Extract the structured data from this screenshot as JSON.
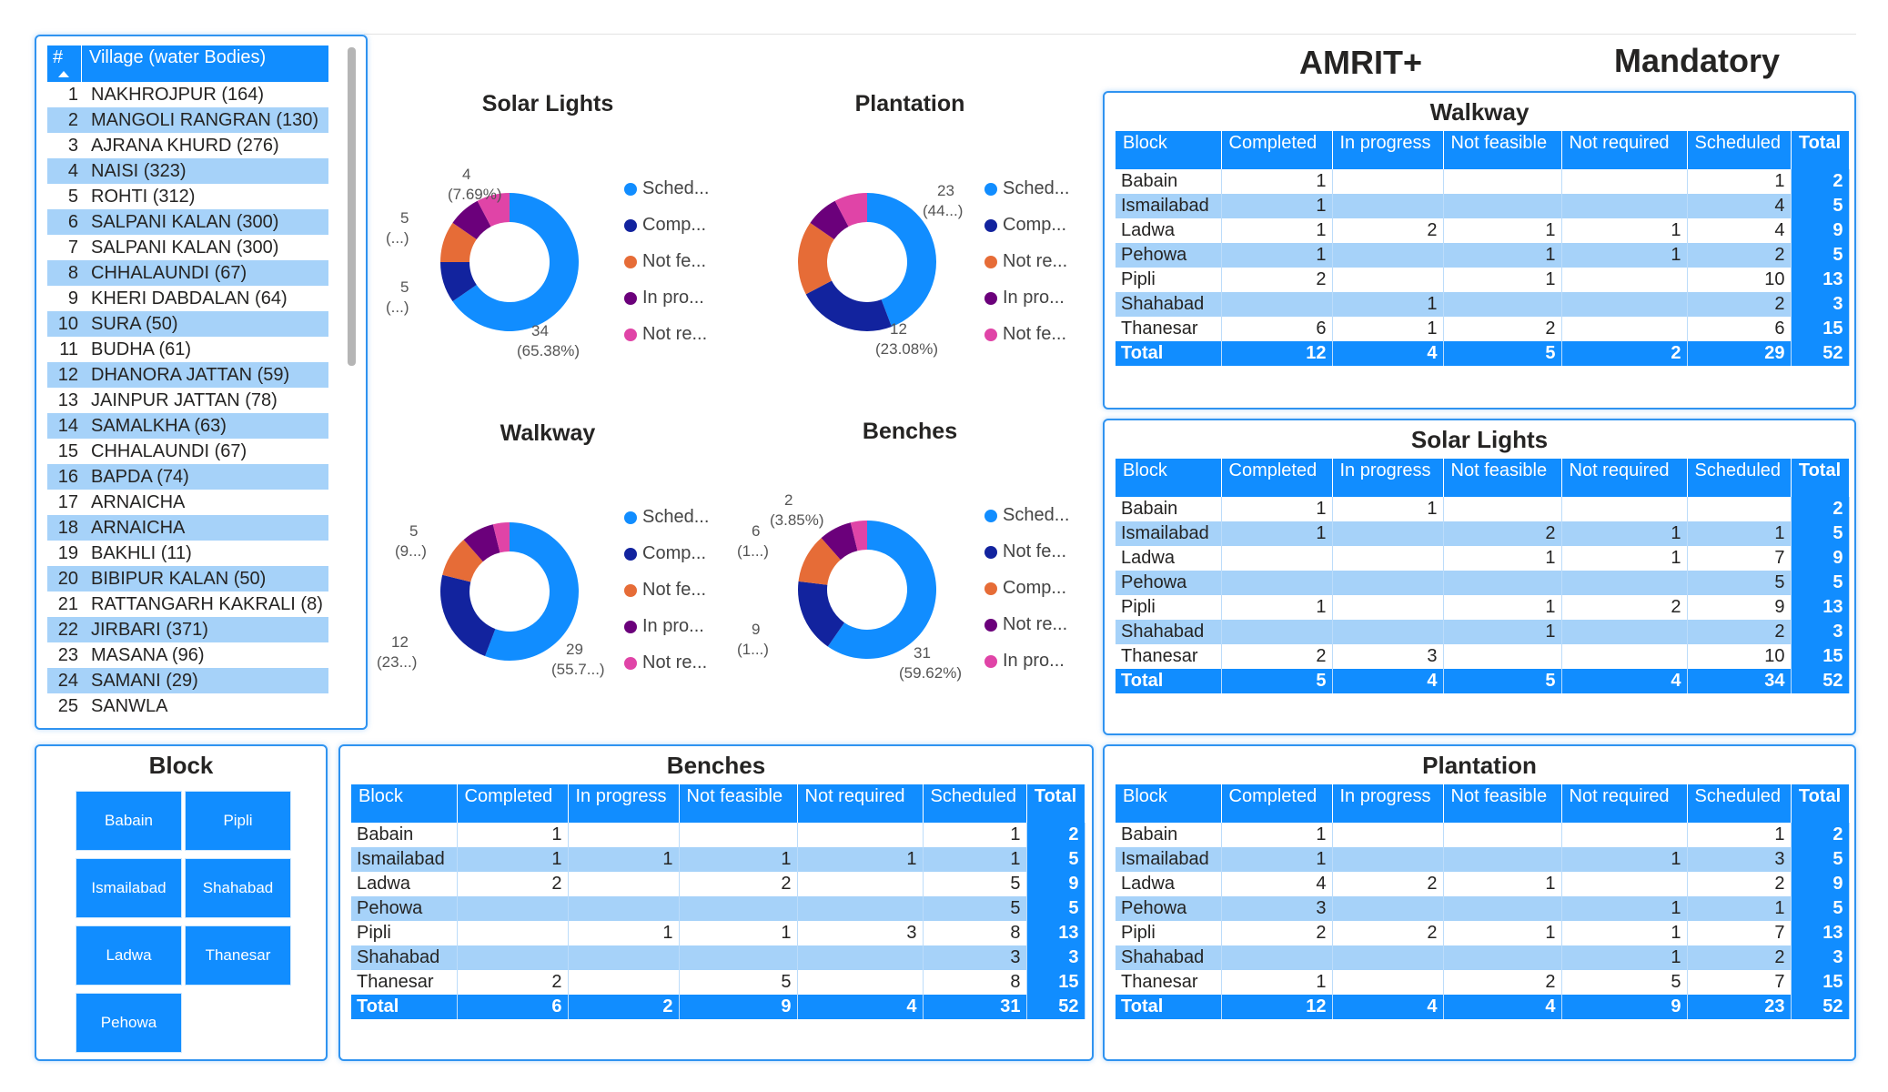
{
  "header": {
    "amrit": "AMRIT+",
    "mandatory": "Mandatory"
  },
  "colors": {
    "scheduled": "#118dff",
    "completed": "#12239e",
    "not_feasible": "#e66c37",
    "in_progress": "#6b007b",
    "not_required": "#e044a7"
  },
  "village_list": {
    "col_num": "#",
    "col_village": "Village (water Bodies)",
    "items": [
      {
        "n": "1",
        "v": "NAKHROJPUR (164)"
      },
      {
        "n": "2",
        "v": "MANGOLI RANGRAN (130)"
      },
      {
        "n": "3",
        "v": "AJRANA KHURD (276)"
      },
      {
        "n": "4",
        "v": "NAISI (323)"
      },
      {
        "n": "5",
        "v": "ROHTI (312)"
      },
      {
        "n": "6",
        "v": "SALPANI KALAN (300)"
      },
      {
        "n": "7",
        "v": "SALPANI KALAN (300)"
      },
      {
        "n": "8",
        "v": "CHHALAUNDI (67)"
      },
      {
        "n": "9",
        "v": "KHERI DABDALAN (64)"
      },
      {
        "n": "10",
        "v": "SURA (50)"
      },
      {
        "n": "11",
        "v": "BUDHA (61)"
      },
      {
        "n": "12",
        "v": "DHANORA JATTAN (59)"
      },
      {
        "n": "13",
        "v": "JAINPUR JATTAN (78)"
      },
      {
        "n": "14",
        "v": "SAMALKHA (63)"
      },
      {
        "n": "15",
        "v": "CHHALAUNDI (67)"
      },
      {
        "n": "16",
        "v": "BAPDA (74)"
      },
      {
        "n": "17",
        "v": "ARNAICHA"
      },
      {
        "n": "18",
        "v": "ARNAICHA"
      },
      {
        "n": "19",
        "v": "BAKHLI (11)"
      },
      {
        "n": "20",
        "v": "BIBIPUR KALAN (50)"
      },
      {
        "n": "21",
        "v": "RATTANGARH KAKRALI (8)"
      },
      {
        "n": "22",
        "v": "JIRBARI (371)"
      },
      {
        "n": "23",
        "v": "MASANA (96)"
      },
      {
        "n": "24",
        "v": "SAMANI (29)"
      },
      {
        "n": "25",
        "v": "SANWLA"
      }
    ]
  },
  "donuts": [
    {
      "title": "Solar Lights",
      "legend": [
        "Sched...",
        "Comp...",
        "Not fe...",
        "In pro...",
        "Not re..."
      ],
      "legend_colors": [
        "#118dff",
        "#12239e",
        "#e66c37",
        "#6b007b",
        "#e044a7"
      ],
      "slices": [
        {
          "label": "Scheduled",
          "value": 34,
          "color": "#118dff"
        },
        {
          "label": "Completed",
          "value": 5,
          "color": "#12239e"
        },
        {
          "label": "Not feasible",
          "value": 5,
          "color": "#e66c37"
        },
        {
          "label": "In progress",
          "value": 4,
          "color": "#6b007b"
        },
        {
          "label": "Not required",
          "value": 4,
          "color": "#e044a7"
        }
      ],
      "labels": [
        {
          "t1": "4",
          "t2": "(7.69%)"
        },
        {
          "t1": "5",
          "t2": "(...)"
        },
        {
          "t1": "5",
          "t2": "(...)"
        },
        {
          "t1": "34",
          "t2": "(65.38%)"
        }
      ]
    },
    {
      "title": "Plantation",
      "legend": [
        "Sched...",
        "Comp...",
        "Not re...",
        "In pro...",
        "Not fe..."
      ],
      "legend_colors": [
        "#118dff",
        "#12239e",
        "#e66c37",
        "#6b007b",
        "#e044a7"
      ],
      "slices": [
        {
          "label": "Scheduled",
          "value": 23,
          "color": "#118dff"
        },
        {
          "label": "Completed",
          "value": 12,
          "color": "#12239e"
        },
        {
          "label": "Not required",
          "value": 9,
          "color": "#e66c37"
        },
        {
          "label": "In progress",
          "value": 4,
          "color": "#6b007b"
        },
        {
          "label": "Not feasible",
          "value": 4,
          "color": "#e044a7"
        }
      ],
      "labels": [
        {
          "t1": "23",
          "t2": "(44...)"
        },
        {
          "t1": "12",
          "t2": "(23.08%)"
        }
      ]
    },
    {
      "title": "Walkway",
      "legend": [
        "Sched...",
        "Comp...",
        "Not fe...",
        "In pro...",
        "Not re..."
      ],
      "legend_colors": [
        "#118dff",
        "#12239e",
        "#e66c37",
        "#6b007b",
        "#e044a7"
      ],
      "slices": [
        {
          "label": "Scheduled",
          "value": 29,
          "color": "#118dff"
        },
        {
          "label": "Completed",
          "value": 12,
          "color": "#12239e"
        },
        {
          "label": "Not feasible",
          "value": 5,
          "color": "#e66c37"
        },
        {
          "label": "In progress",
          "value": 4,
          "color": "#6b007b"
        },
        {
          "label": "Not required",
          "value": 2,
          "color": "#e044a7"
        }
      ],
      "labels": [
        {
          "t1": "5",
          "t2": "(9...)"
        },
        {
          "t1": "12",
          "t2": "(23...)"
        },
        {
          "t1": "29",
          "t2": "(55.7...)"
        }
      ]
    },
    {
      "title": "Benches",
      "legend": [
        "Sched...",
        "Not fe...",
        "Comp...",
        "Not re...",
        "In pro..."
      ],
      "legend_colors": [
        "#118dff",
        "#12239e",
        "#e66c37",
        "#6b007b",
        "#e044a7"
      ],
      "slices": [
        {
          "label": "Scheduled",
          "value": 31,
          "color": "#118dff"
        },
        {
          "label": "Not feasible",
          "value": 9,
          "color": "#12239e"
        },
        {
          "label": "Completed",
          "value": 6,
          "color": "#e66c37"
        },
        {
          "label": "Not required",
          "value": 4,
          "color": "#6b007b"
        },
        {
          "label": "In progress",
          "value": 2,
          "color": "#e044a7"
        }
      ],
      "labels": [
        {
          "t1": "2",
          "t2": "(3.85%)"
        },
        {
          "t1": "6",
          "t2": "(1...)"
        },
        {
          "t1": "9",
          "t2": "(1...)"
        },
        {
          "t1": "31",
          "t2": "(59.62%)"
        }
      ]
    }
  ],
  "table_headers": [
    "Block",
    "Completed",
    "In progress",
    "Not feasible",
    "Not required",
    "Scheduled",
    "Total"
  ],
  "tables": {
    "walkway": {
      "title": "Walkway",
      "rows": [
        [
          "Babain",
          "1",
          "",
          "",
          "",
          "1",
          "2"
        ],
        [
          "Ismailabad",
          "1",
          "",
          "",
          "",
          "4",
          "5"
        ],
        [
          "Ladwa",
          "1",
          "2",
          "1",
          "1",
          "4",
          "9"
        ],
        [
          "Pehowa",
          "1",
          "",
          "1",
          "1",
          "2",
          "5"
        ],
        [
          "Pipli",
          "2",
          "",
          "1",
          "",
          "10",
          "13"
        ],
        [
          "Shahabad",
          "",
          "1",
          "",
          "",
          "2",
          "3"
        ],
        [
          "Thanesar",
          "6",
          "1",
          "2",
          "",
          "6",
          "15"
        ],
        [
          "Total",
          "12",
          "4",
          "5",
          "2",
          "29",
          "52"
        ]
      ]
    },
    "solar": {
      "title": "Solar Lights",
      "rows": [
        [
          "Babain",
          "1",
          "1",
          "",
          "",
          "",
          "2"
        ],
        [
          "Ismailabad",
          "1",
          "",
          "2",
          "1",
          "1",
          "5"
        ],
        [
          "Ladwa",
          "",
          "",
          "1",
          "1",
          "7",
          "9"
        ],
        [
          "Pehowa",
          "",
          "",
          "",
          "",
          "5",
          "5"
        ],
        [
          "Pipli",
          "1",
          "",
          "1",
          "2",
          "9",
          "13"
        ],
        [
          "Shahabad",
          "",
          "",
          "1",
          "",
          "2",
          "3"
        ],
        [
          "Thanesar",
          "2",
          "3",
          "",
          "",
          "10",
          "15"
        ],
        [
          "Total",
          "5",
          "4",
          "5",
          "4",
          "34",
          "52"
        ]
      ]
    },
    "benches": {
      "title": "Benches",
      "rows": [
        [
          "Babain",
          "1",
          "",
          "",
          "",
          "1",
          "2"
        ],
        [
          "Ismailabad",
          "1",
          "1",
          "1",
          "1",
          "1",
          "5"
        ],
        [
          "Ladwa",
          "2",
          "",
          "2",
          "",
          "5",
          "9"
        ],
        [
          "Pehowa",
          "",
          "",
          "",
          "",
          "5",
          "5"
        ],
        [
          "Pipli",
          "",
          "1",
          "1",
          "3",
          "8",
          "13"
        ],
        [
          "Shahabad",
          "",
          "",
          "",
          "",
          "3",
          "3"
        ],
        [
          "Thanesar",
          "2",
          "",
          "5",
          "",
          "8",
          "15"
        ],
        [
          "Total",
          "6",
          "2",
          "9",
          "4",
          "31",
          "52"
        ]
      ]
    },
    "plantation": {
      "title": "Plantation",
      "rows": [
        [
          "Babain",
          "1",
          "",
          "",
          "",
          "1",
          "2"
        ],
        [
          "Ismailabad",
          "1",
          "",
          "",
          "1",
          "3",
          "5"
        ],
        [
          "Ladwa",
          "4",
          "2",
          "1",
          "",
          "2",
          "9"
        ],
        [
          "Pehowa",
          "3",
          "",
          "",
          "1",
          "1",
          "5"
        ],
        [
          "Pipli",
          "2",
          "2",
          "1",
          "1",
          "7",
          "13"
        ],
        [
          "Shahabad",
          "",
          "",
          "",
          "1",
          "2",
          "3"
        ],
        [
          "Thanesar",
          "1",
          "",
          "2",
          "5",
          "7",
          "15"
        ],
        [
          "Total",
          "12",
          "4",
          "4",
          "9",
          "23",
          "52"
        ]
      ]
    }
  },
  "block_slicer": {
    "title": "Block",
    "items": [
      "Babain",
      "Pipli",
      "Ismailabad",
      "Shahabad",
      "Ladwa",
      "Thanesar",
      "Pehowa"
    ]
  }
}
